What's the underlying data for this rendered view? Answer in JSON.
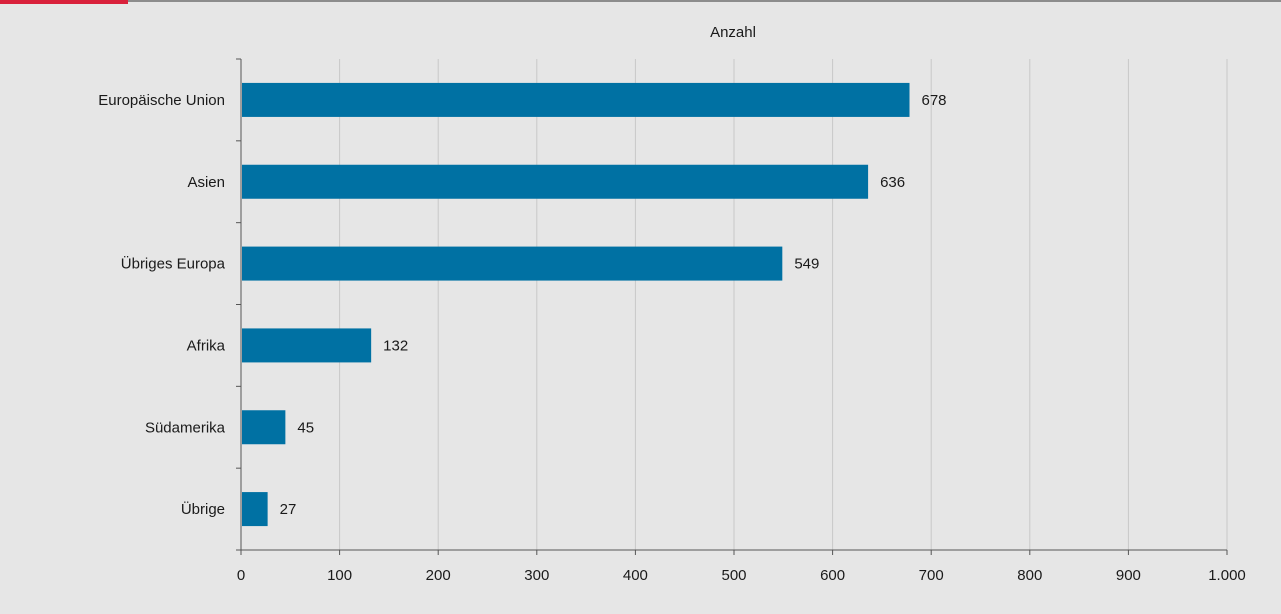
{
  "colors": {
    "bar": "#0071a3",
    "background": "#e6e6e6",
    "gridline": "#c8c8c8",
    "axis": "#555555",
    "accent": "#d9213b"
  },
  "chart_data": {
    "type": "bar",
    "orientation": "horizontal",
    "title": "",
    "xlabel": "Anzahl",
    "ylabel": "",
    "categories": [
      "Europäische Union",
      "Asien",
      "Übriges Europa",
      "Afrika",
      "Südamerika",
      "Übrige"
    ],
    "values": [
      678,
      636,
      549,
      132,
      45,
      27
    ],
    "value_labels": [
      "678",
      "636",
      "549",
      "132",
      "45",
      "27"
    ],
    "xlim": [
      0,
      1000
    ],
    "xticks": [
      0,
      100,
      200,
      300,
      400,
      500,
      600,
      700,
      800,
      900,
      1000
    ],
    "xtick_labels": [
      "0",
      "100",
      "200",
      "300",
      "400",
      "500",
      "600",
      "700",
      "800",
      "900",
      "1.000"
    ],
    "grid": "vertical",
    "legend": "none",
    "axis_title_position": "top"
  }
}
